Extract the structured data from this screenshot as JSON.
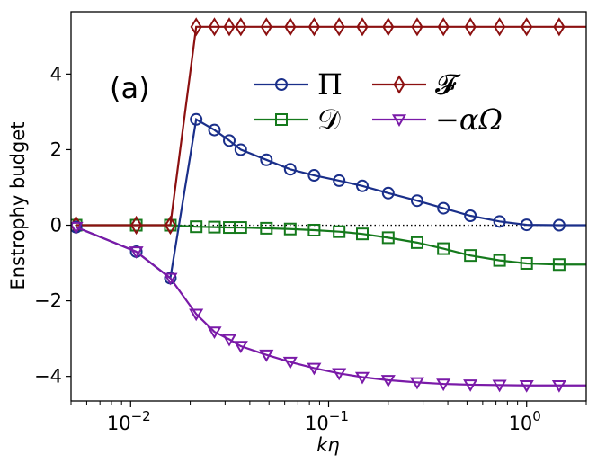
{
  "chart_data": {
    "type": "line",
    "panel_label": "(a)",
    "xlabel": "kη",
    "ylabel": "Enstrophy budget",
    "xscale": "log",
    "xlim": [
      0.005,
      2.0
    ],
    "ylim": [
      -4.65,
      5.65
    ],
    "x_ticks": [
      {
        "value": 0.01,
        "base": "10",
        "exp": "−2"
      },
      {
        "value": 0.1,
        "base": "10",
        "exp": "−1"
      },
      {
        "value": 1,
        "base": "10",
        "exp": "0"
      }
    ],
    "y_ticks": [
      {
        "value": -4,
        "label": "−4"
      },
      {
        "value": -2,
        "label": "−2"
      },
      {
        "value": 0,
        "label": "0"
      },
      {
        "value": 2,
        "label": "2"
      },
      {
        "value": 4,
        "label": "4"
      }
    ],
    "reference_line": {
      "y": 0,
      "style": "dotted"
    },
    "series": [
      {
        "name": "Π",
        "color": "#1a2f8a",
        "marker": "circle",
        "x": [
          0.0053,
          0.01068,
          0.01587,
          0.02143,
          0.0265,
          0.0315,
          0.036,
          0.0485,
          0.064,
          0.0845,
          0.113,
          0.148,
          0.2,
          0.28,
          0.38,
          0.52,
          0.73,
          1.0,
          1.46
        ],
        "values": [
          -0.05,
          -0.7,
          -1.4,
          2.8,
          2.52,
          2.24,
          2.0,
          1.73,
          1.48,
          1.32,
          1.18,
          1.04,
          0.85,
          0.65,
          0.45,
          0.25,
          0.1,
          0.01,
          0.0
        ]
      },
      {
        "name": "𝒟",
        "color": "#157a1c",
        "marker": "square",
        "x": [
          0.0053,
          0.01068,
          0.01587,
          0.02143,
          0.0265,
          0.0315,
          0.036,
          0.0485,
          0.064,
          0.0845,
          0.113,
          0.148,
          0.2,
          0.28,
          0.38,
          0.52,
          0.73,
          1.0,
          1.46
        ],
        "values": [
          0.0,
          0.0,
          0.0,
          -0.04,
          -0.05,
          -0.06,
          -0.06,
          -0.08,
          -0.1,
          -0.13,
          -0.17,
          -0.23,
          -0.33,
          -0.46,
          -0.62,
          -0.8,
          -0.93,
          -1.01,
          -1.04
        ]
      },
      {
        "name": "𝓕",
        "color": "#8c1010",
        "marker": "diamond",
        "x": [
          0.0053,
          0.01068,
          0.01587,
          0.02143,
          0.0265,
          0.0315,
          0.036,
          0.0485,
          0.064,
          0.0845,
          0.113,
          0.148,
          0.2,
          0.28,
          0.38,
          0.52,
          0.73,
          1.0,
          1.46
        ],
        "values": [
          0.0,
          0.0,
          0.0,
          5.25,
          5.25,
          5.25,
          5.25,
          5.25,
          5.25,
          5.25,
          5.25,
          5.25,
          5.25,
          5.25,
          5.25,
          5.25,
          5.25,
          5.25,
          5.25
        ]
      },
      {
        "name": "−αΩ",
        "color": "#7a1aa8",
        "marker": "triangle-down",
        "x": [
          0.0053,
          0.01068,
          0.01587,
          0.02143,
          0.0265,
          0.0315,
          0.036,
          0.0485,
          0.064,
          0.0845,
          0.113,
          0.148,
          0.2,
          0.28,
          0.38,
          0.52,
          0.73,
          1.0,
          1.46
        ],
        "values": [
          -0.05,
          -0.7,
          -1.4,
          -2.35,
          -2.82,
          -3.02,
          -3.2,
          -3.43,
          -3.62,
          -3.78,
          -3.92,
          -4.02,
          -4.1,
          -4.16,
          -4.2,
          -4.22,
          -4.23,
          -4.24,
          -4.24
        ]
      }
    ],
    "legend_order": [
      0,
      2,
      1,
      3
    ]
  }
}
